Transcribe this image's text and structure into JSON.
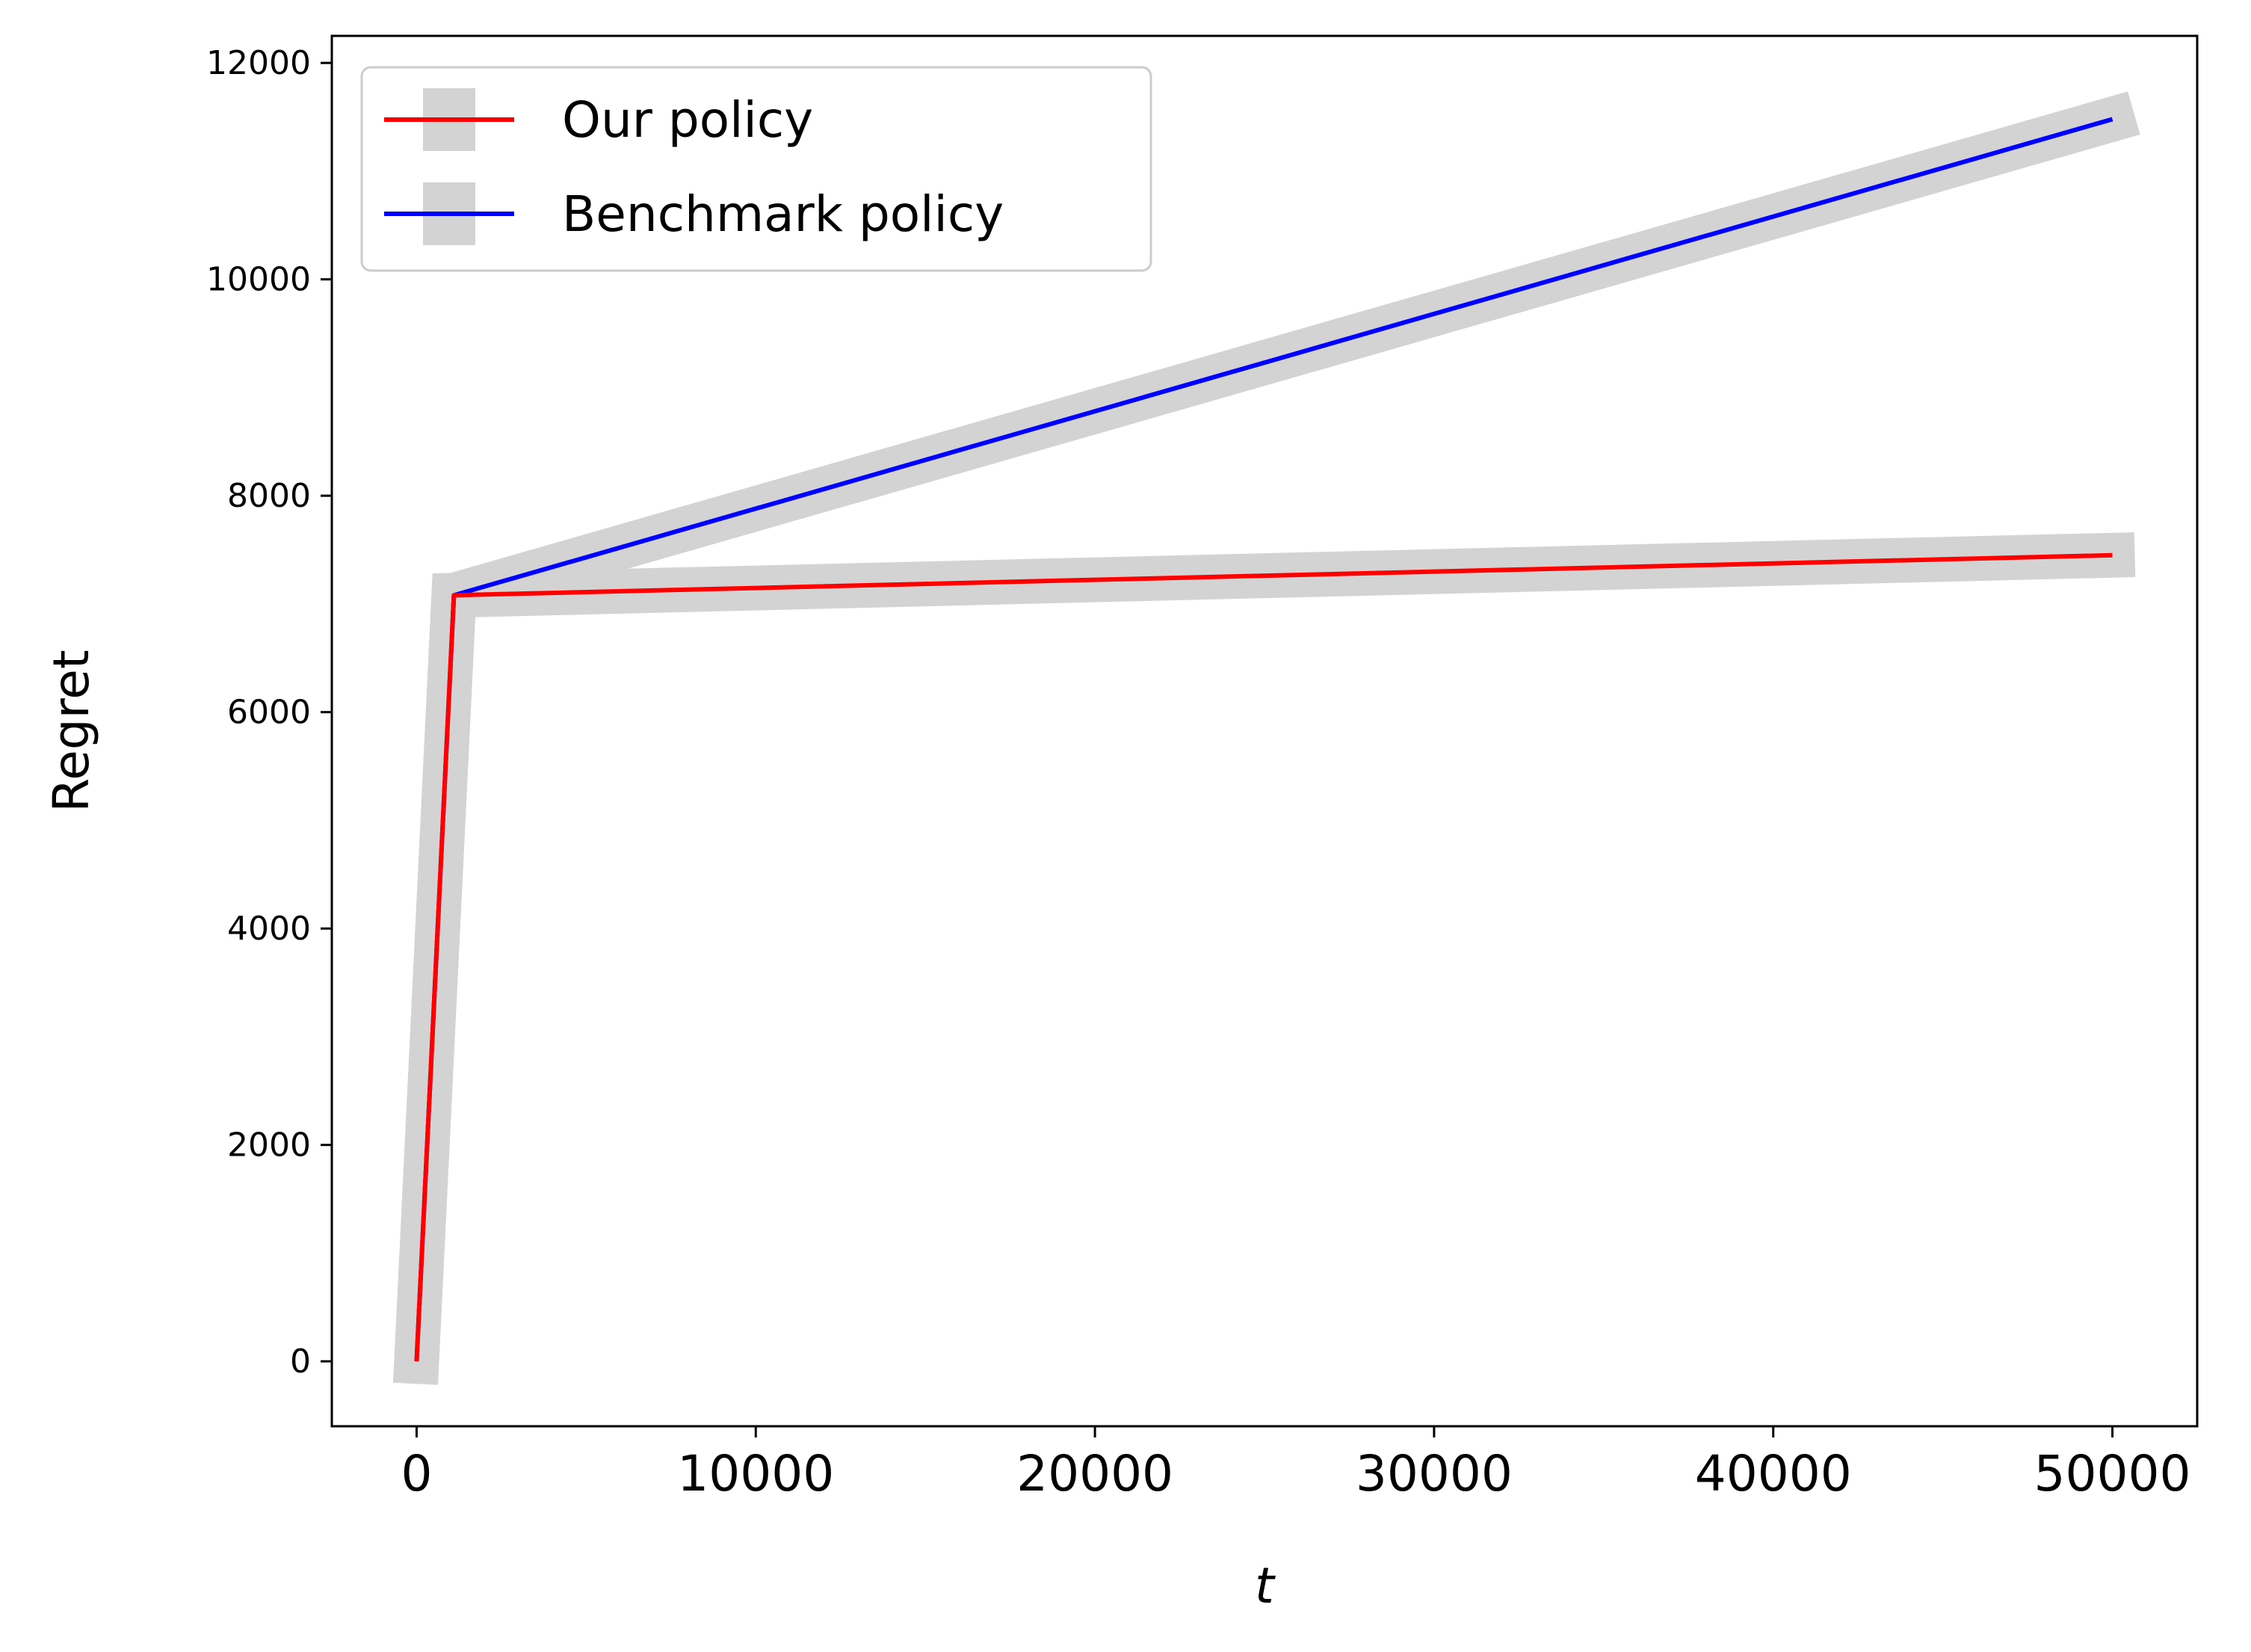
{
  "chart_data": {
    "type": "line",
    "title": "",
    "xlabel": "t",
    "ylabel": "Regret",
    "xlim": [
      -2500,
      52500
    ],
    "ylim": [
      -600,
      12250
    ],
    "x_ticks": [
      0,
      10000,
      20000,
      30000,
      40000,
      50000
    ],
    "y_ticks": [
      0,
      2000,
      4000,
      6000,
      8000,
      10000,
      12000
    ],
    "grid": false,
    "legend": {
      "position": "top-left",
      "entries": [
        "Our policy",
        "Benchmark policy"
      ]
    },
    "band_color": "#d3d3d3",
    "series": [
      {
        "name": "Our policy",
        "color": "#ff0000",
        "x": [
          0,
          1100,
          50000
        ],
        "y": [
          0,
          7080,
          7450
        ],
        "band_lower": [
          0,
          7030,
          7390
        ],
        "band_upper": [
          0,
          7130,
          7510
        ]
      },
      {
        "name": "Benchmark policy",
        "color": "#0000ff",
        "x": [
          0,
          1100,
          50000
        ],
        "y": [
          0,
          7080,
          11480
        ],
        "band_lower": [
          0,
          7030,
          11350
        ],
        "band_upper": [
          0,
          7130,
          11620
        ]
      }
    ]
  }
}
